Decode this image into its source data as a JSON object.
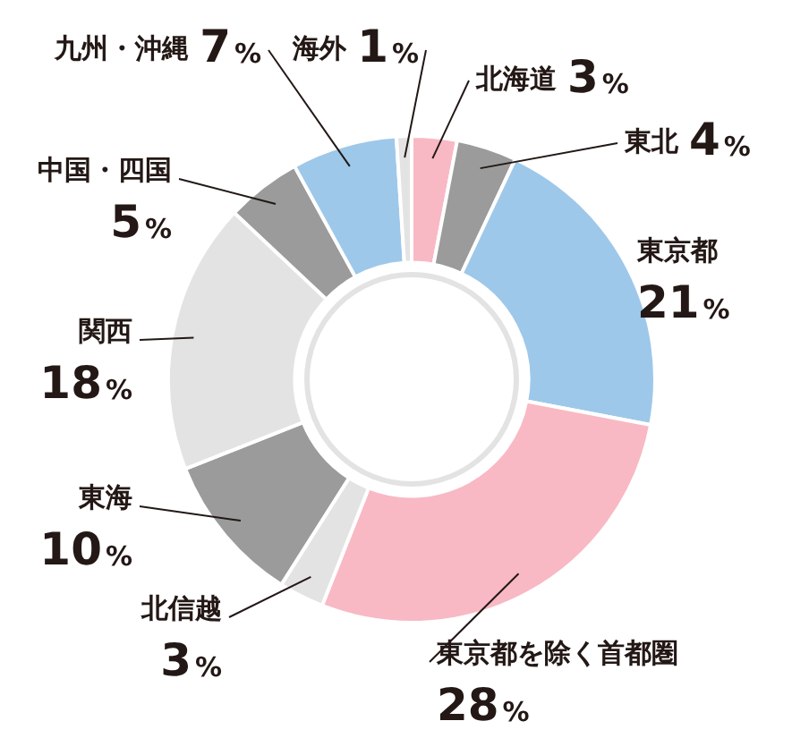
{
  "chart_data": {
    "type": "donut",
    "categories": [
      "北海道",
      "東北",
      "東京都",
      "東京都を除く首都圏",
      "北信越",
      "東海",
      "関西",
      "中国・四国",
      "九州・沖縄",
      "海外"
    ],
    "values": [
      3,
      4,
      21,
      28,
      3,
      10,
      18,
      5,
      7,
      1
    ],
    "value_labels": [
      "3%",
      "4%",
      "21%",
      "28%",
      "3%",
      "10%",
      "18%",
      "5%",
      "7%",
      "1%"
    ],
    "colors": [
      "#f8b9c4",
      "#9b9b9b",
      "#9ec8ea",
      "#f8b9c4",
      "#e4e3e4",
      "#9b9b9b",
      "#e4e3e4",
      "#9b9b9b",
      "#9ec8ea",
      "#e4e3e4"
    ],
    "legend": false
  }
}
